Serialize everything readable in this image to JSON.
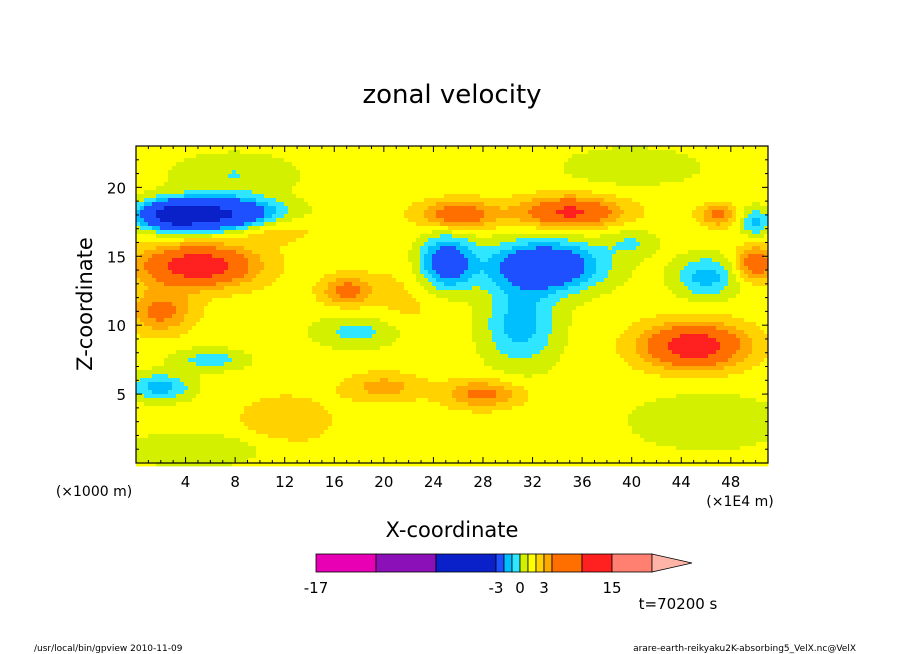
{
  "chart_data": {
    "type": "heatmap",
    "title": "zonal velocity",
    "xlabel": "X-coordinate",
    "ylabel": "Z-coordinate",
    "x_unit": "(×1E4 m)",
    "y_unit": "(×1000 m)",
    "xlim": [
      0,
      51
    ],
    "ylim": [
      0,
      23
    ],
    "x_ticks": [
      "4",
      "8",
      "12",
      "16",
      "20",
      "24",
      "28",
      "32",
      "36",
      "40",
      "44",
      "48"
    ],
    "y_ticks": [
      "5",
      "10",
      "15",
      "20"
    ],
    "colorbar": {
      "labels": [
        "-17",
        "-3",
        "0",
        "3",
        "15"
      ],
      "levels": [
        -17,
        -12,
        -7,
        -3,
        -2,
        -1,
        0,
        1,
        2,
        3,
        5,
        10,
        15
      ],
      "colors": [
        "#e700b4",
        "#8c10b8",
        "#0a20c8",
        "#1e50ff",
        "#00bfff",
        "#2ee6ff",
        "#d2f000",
        "#ffff00",
        "#ffd200",
        "#ffa800",
        "#ff6f00",
        "#ff2020",
        "#ff7f70",
        "#ffb4a8"
      ]
    },
    "annotation_time": "t=70200 s",
    "background_level": 0.5,
    "features": [
      {
        "x": 6,
        "z": 18,
        "sx": 5,
        "sz": 1.2,
        "u": -9
      },
      {
        "x": 3,
        "z": 18,
        "sx": 2,
        "sz": 0.8,
        "u": -6
      },
      {
        "x": 5,
        "z": 14.3,
        "sx": 4.5,
        "sz": 1.5,
        "u": 6
      },
      {
        "x": 2,
        "z": 11,
        "sx": 2.5,
        "sz": 1.5,
        "u": 3
      },
      {
        "x": 2,
        "z": 5.5,
        "sx": 2.5,
        "sz": 1,
        "u": -3
      },
      {
        "x": 6,
        "z": 7.5,
        "sx": 3,
        "sz": 0.8,
        "u": -2
      },
      {
        "x": 26,
        "z": 18,
        "sx": 3,
        "sz": 1,
        "u": 4
      },
      {
        "x": 35,
        "z": 18.2,
        "sx": 4,
        "sz": 1.1,
        "u": 5
      },
      {
        "x": 25,
        "z": 14.5,
        "sx": 2.2,
        "sz": 2,
        "u": -5
      },
      {
        "x": 33,
        "z": 14.3,
        "sx": 4.5,
        "sz": 1.8,
        "u": -6
      },
      {
        "x": 31,
        "z": 10,
        "sx": 3,
        "sz": 3,
        "u": -3
      },
      {
        "x": 18,
        "z": 9.5,
        "sx": 3.5,
        "sz": 1.2,
        "u": -2
      },
      {
        "x": 17,
        "z": 12.5,
        "sx": 2,
        "sz": 1,
        "u": 3
      },
      {
        "x": 45,
        "z": 8.5,
        "sx": 4,
        "sz": 1.6,
        "u": 6
      },
      {
        "x": 46,
        "z": 13.5,
        "sx": 2.5,
        "sz": 1.5,
        "u": -3
      },
      {
        "x": 50,
        "z": 14.5,
        "sx": 1.5,
        "sz": 1.2,
        "u": 4
      },
      {
        "x": 47,
        "z": 18,
        "sx": 1.5,
        "sz": 0.8,
        "u": 3
      },
      {
        "x": 50,
        "z": 17.5,
        "sx": 1.2,
        "sz": 1,
        "u": -3
      },
      {
        "x": 28,
        "z": 5,
        "sx": 3,
        "sz": 1,
        "u": 3
      },
      {
        "x": 20,
        "z": 5.5,
        "sx": 3,
        "sz": 1,
        "u": 2
      },
      {
        "x": 10,
        "z": 17,
        "sx": 4,
        "sz": 1,
        "u": 2
      },
      {
        "x": 40,
        "z": 16,
        "sx": 2,
        "sz": 1,
        "u": -1.5
      },
      {
        "x": 46,
        "z": 3,
        "sx": 6,
        "sz": 2,
        "u": -1.5
      },
      {
        "x": 5,
        "z": 1,
        "sx": 6,
        "sz": 1.2,
        "u": -1.5
      },
      {
        "x": 40,
        "z": 21.5,
        "sx": 6,
        "sz": 1.5,
        "u": -1.2
      },
      {
        "x": 8,
        "z": 21,
        "sx": 5,
        "sz": 1.5,
        "u": -1.5
      },
      {
        "x": 22,
        "z": 12,
        "sx": 4,
        "sz": 3,
        "u": 0.8
      },
      {
        "x": 12,
        "z": 3,
        "sx": 4,
        "sz": 2,
        "u": 1.2
      }
    ]
  },
  "footer": {
    "left": "/usr/local/bin/gpview 2010-11-09",
    "right": "arare-earth-reikyaku2K-absorbing5_VelX.nc@VelX"
  }
}
